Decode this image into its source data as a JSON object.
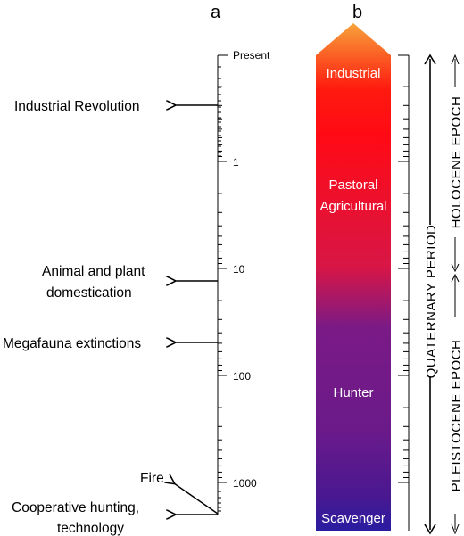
{
  "panel_a": {
    "label": "a",
    "scale": {
      "present_label": "Present",
      "ticks": [
        {
          "value": 1,
          "label": "1"
        },
        {
          "value": 10,
          "label": "10"
        },
        {
          "value": 100,
          "label": "100"
        },
        {
          "value": 1000,
          "label": "1000"
        }
      ]
    },
    "events": [
      {
        "lines": [
          "Industrial Revolution"
        ]
      },
      {
        "lines": [
          "Animal and plant",
          "domestication"
        ]
      },
      {
        "lines": [
          "Megafauna extinctions"
        ]
      },
      {
        "lines": [
          "Fire"
        ]
      },
      {
        "lines": [
          "Cooperative hunting,",
          "technology"
        ]
      }
    ]
  },
  "panel_b": {
    "label": "b",
    "stages": [
      {
        "lines": [
          "Industrial"
        ]
      },
      {
        "lines": [
          "Pastoral",
          "Agricultural"
        ]
      },
      {
        "lines": [
          "Hunter"
        ]
      },
      {
        "lines": [
          "Scavenger"
        ]
      }
    ],
    "gradient_colors": [
      "#f7a23a",
      "#ff1a0f",
      "#ff0a14",
      "#d81646",
      "#7a1a86",
      "#6b1a8a",
      "#4a1890",
      "#2a1ca0"
    ],
    "period": "QUATERNARY PERIOD",
    "epochs": [
      "HOLOCENE EPOCH",
      "PLEISTOCENE  EPOCH"
    ]
  }
}
